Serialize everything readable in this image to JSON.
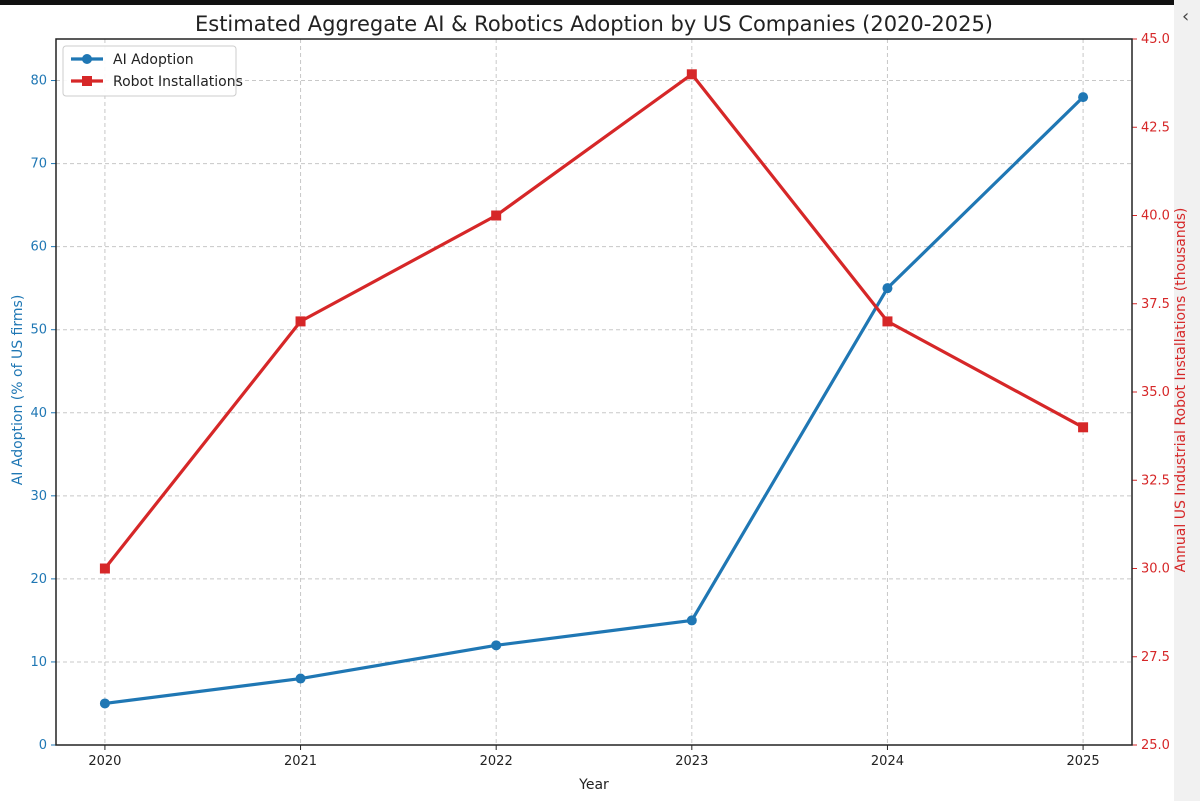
{
  "chart_data": {
    "type": "line",
    "title": "Estimated Aggregate AI & Robotics Adoption by US Companies (2020-2025)",
    "xlabel": "Year",
    "x": [
      "2020",
      "2021",
      "2022",
      "2023",
      "2024",
      "2025"
    ],
    "xlim": [
      2019.75,
      2025.25
    ],
    "y_left": {
      "label": "AI Adoption (% of US firms)",
      "lim": [
        0,
        85
      ],
      "ticks": [
        "0",
        "10",
        "20",
        "30",
        "40",
        "50",
        "60",
        "70",
        "80"
      ],
      "color": "#1f77b4"
    },
    "y_right": {
      "label": "Annual US Industrial Robot Installations (thousands)",
      "lim": [
        25.0,
        45.0
      ],
      "ticks": [
        "25.0",
        "27.5",
        "30.0",
        "32.5",
        "35.0",
        "37.5",
        "40.0",
        "42.5",
        "45.0"
      ],
      "color": "#d62728"
    },
    "series": [
      {
        "name": "AI Adoption",
        "axis": "left",
        "marker": "circle",
        "color": "#1f77b4",
        "values": [
          5,
          8,
          12,
          15,
          55,
          78
        ]
      },
      {
        "name": "Robot Installations",
        "axis": "right",
        "marker": "square",
        "color": "#d62728",
        "values": [
          30,
          37,
          40,
          44,
          37,
          34
        ]
      }
    ],
    "grid": true,
    "legend_position": "top-left"
  }
}
